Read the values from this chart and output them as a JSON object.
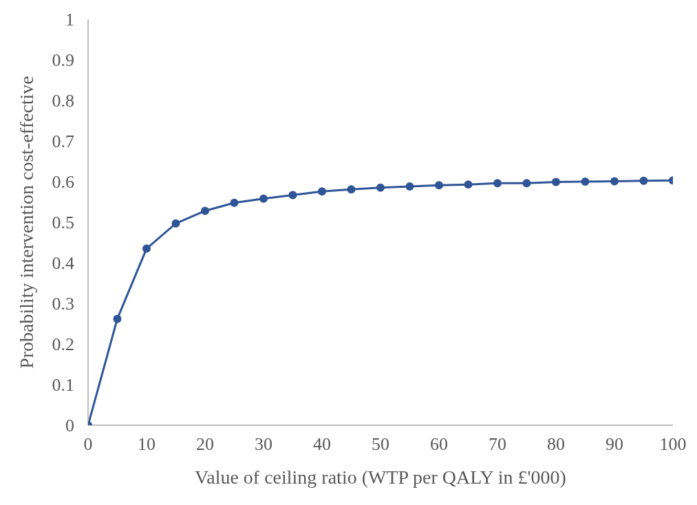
{
  "chart_data": {
    "type": "line",
    "xlabel": "Value of ceiling ratio (WTP per QALY in £'000)",
    "ylabel": "Probability intervention cost-effective",
    "x": [
      0,
      5,
      10,
      15,
      20,
      25,
      30,
      35,
      40,
      45,
      50,
      55,
      60,
      65,
      70,
      75,
      80,
      85,
      90,
      95,
      100
    ],
    "series": [
      {
        "color": "#2f5597",
        "values": [
          0,
          0.262,
          0.435,
          0.497,
          0.528,
          0.548,
          0.558,
          0.567,
          0.576,
          0.581,
          0.585,
          0.588,
          0.591,
          0.593,
          0.596,
          0.596,
          0.599,
          0.6,
          0.601,
          0.602,
          0.603
        ]
      }
    ],
    "xlim": [
      0,
      100
    ],
    "xticks": [
      0,
      10,
      20,
      30,
      40,
      50,
      60,
      70,
      80,
      90,
      100
    ],
    "ylim": [
      0,
      1
    ],
    "yticks": [
      0,
      0.1,
      0.2,
      0.3,
      0.4,
      0.5,
      0.6,
      0.7,
      0.8,
      0.9,
      1
    ],
    "grid": false,
    "legend": false,
    "marker": "circle",
    "line_style": "solid"
  }
}
